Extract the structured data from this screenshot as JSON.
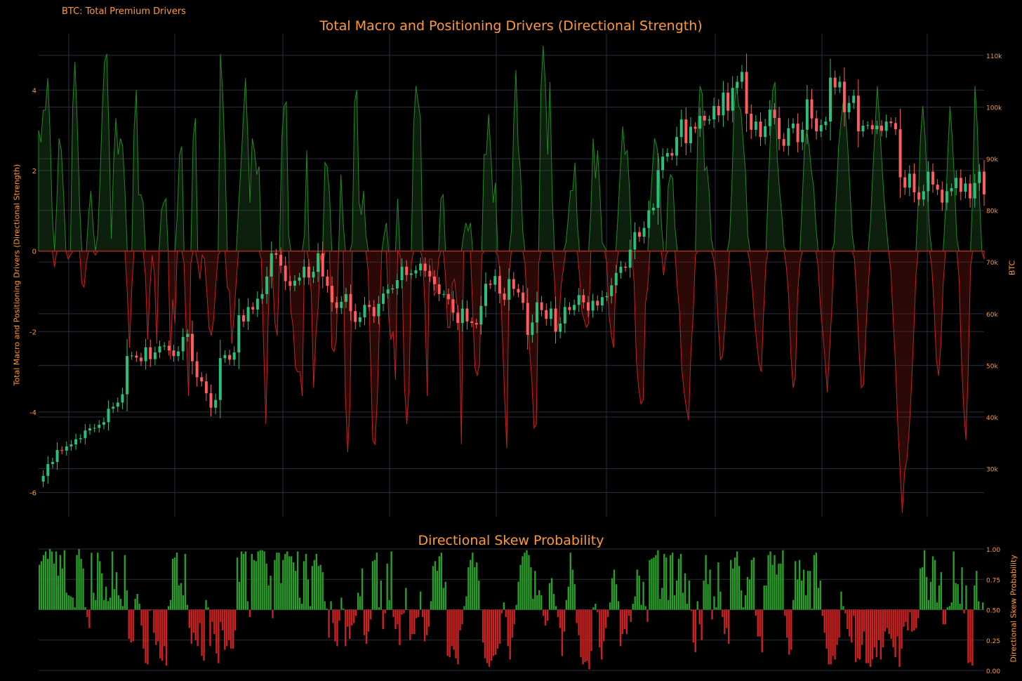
{
  "header_label": "BTC: Total Premium Drivers",
  "colors": {
    "background": "#000000",
    "text": "#ff9933",
    "grid": "#2a2d3e",
    "green": "#2a9d2a",
    "red": "#cc2222",
    "candle_up": "#2bbf7a",
    "candle_down": "#ff5c5c"
  },
  "chart_data": [
    {
      "type": "area",
      "title": "Total Macro and Positioning Drivers (Directional Strength)",
      "ylabel": "Total Macro and Positioning Drivers (Directional Strength)",
      "y2label": "BTC",
      "y_ticks": [
        4,
        2,
        0,
        -2,
        -4,
        -6
      ],
      "ylim": [
        -6.6,
        5.4
      ],
      "y2_ticks": [
        "110k",
        "100k",
        "90k",
        "80k",
        "70k",
        "60k",
        "50k",
        "40k",
        "30k"
      ],
      "y2_tick_values": [
        110000,
        100000,
        90000,
        80000,
        70000,
        60000,
        50000,
        40000,
        30000
      ],
      "y2lim": [
        20700,
        114200
      ],
      "grid": true,
      "series": [
        {
          "kind": "driver_strength",
          "values": [
            3.0,
            2.7,
            3.5,
            3.5,
            4.3,
            3.0,
            0.9,
            -0.4,
            1.2,
            2.8,
            2.5,
            1.4,
            0.0,
            -0.2,
            -0.1,
            3.6,
            4.7,
            3.2,
            1.2,
            -0.8,
            -0.9,
            -0.3,
            0.9,
            1.5,
            0.6,
            -0.1,
            0.4,
            1.7,
            3.5,
            4.7,
            4.9,
            2.8,
            0.3,
            2.2,
            3.3,
            2.4,
            2.8,
            2.6,
            1.5,
            -1.0,
            -2.4,
            -0.9,
            3.0,
            4.0,
            1.4,
            1.4,
            1.2,
            -0.6,
            -2.2,
            -0.9,
            -0.1,
            -0.6,
            -2.3,
            0.0,
            1.0,
            1.2,
            1.3,
            0.0,
            -2.7,
            -1.2,
            -1.8,
            0.9,
            2.4,
            2.6,
            -0.3,
            -2.1,
            -3.6,
            -0.3,
            2.8,
            3.3,
            -0.3,
            -0.7,
            -0.1,
            -0.2,
            -1.0,
            -1.9,
            -2.1,
            -1.7,
            -0.8,
            -0.1,
            4.9,
            3.9,
            2.4,
            -0.9,
            -1.0,
            -2.3,
            -1.6,
            -0.7,
            1.1,
            2.1,
            3.2,
            4.3,
            2.9,
            1.2,
            2.8,
            2.5,
            1.9,
            2.1,
            -0.2,
            -2.4,
            -4.3,
            -1.7,
            -0.1,
            -0.7,
            -1.8,
            -2.1,
            -0.3,
            2.8,
            3.6,
            3.7,
            0.4,
            -1.5,
            -1.9,
            -2.9,
            -3.0,
            -3.0,
            -3.6,
            0.4,
            2.5,
            -0.3,
            -1.1,
            -3.4,
            -2.1,
            -1.4,
            -0.1,
            -0.4,
            2.2,
            2.1,
            1.4,
            -2.4,
            -2.5,
            -2.2,
            0.0,
            1.9,
            0.7,
            -3.6,
            -5.0,
            -3.8,
            0.2,
            3.7,
            4.0,
            1.2,
            0.9,
            1.5,
            0.4,
            -0.5,
            -2.5,
            -4.7,
            -4.8,
            -3.7,
            -1.7,
            0.0,
            0.4,
            0.7,
            -1.6,
            -2.2,
            -2.0,
            -3.2,
            1.3,
            -0.1,
            -0.8,
            -3.4,
            -4.3,
            -3.4,
            -0.3,
            3.1,
            4.1,
            3.7,
            3.3,
            -0.2,
            -1.4,
            -3.6,
            -0.2,
            -0.2,
            -1.1,
            -1.0,
            -0.2,
            1.3,
            1.4,
            -0.6,
            -1.9,
            -1.9,
            -0.8,
            -0.7,
            -1.3,
            -1.6,
            -4.8,
            0.4,
            0.7,
            0.5,
            0.7,
            -1.5,
            -2.9,
            -3.1,
            -2.8,
            -0.1,
            2.4,
            2.4,
            3.4,
            2.4,
            1.2,
            1.7,
            -0.1,
            -0.5,
            -2.0,
            -3.6,
            -4.9,
            -0.6,
            0.5,
            3.1,
            4.5,
            2.6,
            2.0,
            0.5,
            -0.3,
            -1.5,
            -2.4,
            -3.2,
            -4.4,
            -4.3,
            -0.3,
            4.0,
            5.1,
            4.1,
            2.4,
            4.2,
            1.3,
            -0.7,
            -2.0,
            -1.7,
            -0.8,
            -0.4,
            0.2,
            0.8,
            1.5,
            1.5,
            2.2,
            0.7,
            -0.6,
            -1.5,
            -1.7,
            -1.9,
            -1.8,
            1.0,
            2.8,
            1.8,
            2.5,
            1.4,
            0.2,
            0.1,
            -0.3,
            -1.6,
            -2.1,
            -2.4,
            -0.6,
            1.0,
            2.1,
            3.1,
            2.4,
            2.5,
            1.5,
            0.0,
            -0.8,
            -2.7,
            -3.4,
            -3.8,
            -3.7,
            -1.3,
            -0.9,
            1.0,
            2.0,
            2.8,
            2.6,
            2.2,
            0.7,
            -0.6,
            -0.1,
            1.6,
            1.9,
            1.8,
            0.6,
            -0.9,
            -1.5,
            -2.9,
            -3.5,
            -3.9,
            -4.2,
            -2.5,
            -1.6,
            -0.1,
            3.0,
            4.1,
            3.9,
            2.0,
            2.1,
            1.5,
            0.3,
            -0.2,
            -0.6,
            -1.8,
            -2.7,
            -2.6,
            -1.8,
            -1.0,
            0.3,
            1.6,
            3.5,
            4.2,
            3.6,
            3.5,
            2.7,
            2.0,
            0.4,
            -0.3,
            -0.9,
            -1.7,
            -2.3,
            -2.8,
            -3.0,
            -1.5,
            -0.3,
            1.5,
            2.9,
            4.0,
            4.2,
            2.3,
            1.5,
            0.9,
            0.1,
            -0.4,
            -1.1,
            -2.6,
            -3.4,
            -3.1,
            -1.0,
            -0.3,
            1.3,
            2.6,
            3.0,
            2.6,
            2.0,
            1.6,
            0.6,
            -0.4,
            -1.4,
            -2.0,
            -2.7,
            -3.5,
            -2.5,
            -1.4,
            0.2,
            1.4,
            2.6,
            3.2,
            3.7,
            3.4,
            2.6,
            1.5,
            0.4,
            -0.2,
            -1.2,
            -2.5,
            -3.4,
            -3.3,
            -2.0,
            -0.9,
            0.7,
            1.9,
            3.0,
            4.1,
            3.2,
            2.2,
            1.3,
            0.6,
            0.0,
            -0.5,
            -1.7,
            -2.8,
            -4.3,
            -5.4,
            -6.5,
            -5.5,
            -5.2,
            -4.5,
            -3.4,
            -2.1,
            -0.6,
            1.2,
            2.8,
            3.6,
            2.9,
            1.6,
            0.5,
            -0.4,
            -1.4,
            -2.7,
            -3.1,
            -2.3,
            -0.8,
            1.0,
            2.4,
            3.6,
            2.8,
            1.7,
            0.3,
            -0.7,
            -2.6,
            -3.9,
            -4.7,
            -3.0,
            -0.4,
            1.4,
            4.1,
            3.1,
            1.3,
            0.0,
            -0.2
          ]
        },
        {
          "kind": "btc_ohlc",
          "name": "BTC",
          "close": [
            27500,
            28600,
            30900,
            31300,
            33600,
            33500,
            34300,
            34700,
            35700,
            35900,
            37400,
            37800,
            37900,
            38500,
            39000,
            41600,
            42000,
            42800,
            44400,
            51800,
            51900,
            51500,
            50800,
            53500,
            51200,
            52500,
            53700,
            53800,
            52900,
            51800,
            52700,
            55500,
            56100,
            50800,
            47700,
            46900,
            44600,
            41800,
            43300,
            51400,
            52000,
            51100,
            52500,
            59700,
            58500,
            61300,
            60800,
            62900,
            63800,
            67200,
            71700,
            71400,
            69300,
            66300,
            65400,
            66400,
            67000,
            69100,
            67000,
            68100,
            71700,
            67200,
            65400,
            62200,
            61100,
            62300,
            63800,
            60500,
            58400,
            59300,
            61700,
            61300,
            59500,
            61900,
            63900,
            64700,
            64900,
            66500,
            69100,
            67500,
            67800,
            68400,
            69700,
            68300,
            67200,
            65700,
            63800,
            63800,
            62800,
            60200,
            58200,
            61000,
            58500,
            58200,
            57900,
            61500,
            65800,
            65600,
            67300,
            63900,
            62700,
            66700,
            64800,
            64100,
            62100,
            55900,
            58300,
            62200,
            60700,
            59000,
            61000,
            56500,
            58100,
            61300,
            60700,
            61700,
            63600,
            62200,
            60600,
            62500,
            61600,
            63200,
            63400,
            65500,
            67900,
            69100,
            68900,
            72400,
            75800,
            74900,
            76600,
            80000,
            80500,
            87800,
            90400,
            91100,
            90600,
            94200,
            97600,
            93000,
            96200,
            95800,
            98300,
            97400,
            97600,
            100200,
            98400,
            102800,
            99300,
            103700,
            104900,
            106800,
            98700,
            95600,
            97200,
            94200,
            96300,
            99500,
            97900,
            93800,
            92500,
            95900,
            96800,
            93200,
            95600,
            101500,
            97800,
            95300,
            96500,
            97200,
            105700,
            103800,
            104900,
            99000,
            100800,
            102200,
            95300,
            96400,
            96500,
            95700,
            96400,
            95400,
            97200,
            96900,
            95700,
            86400,
            84400,
            87100,
            83500,
            82100,
            83700,
            87500,
            85000,
            84000,
            81500,
            83700,
            84300,
            86300,
            83600,
            85200,
            82300,
            85300,
            87500,
            83100
          ]
        }
      ]
    },
    {
      "type": "bar",
      "title": "Directional Skew Probability",
      "ylabel": "Directional Skew Probability",
      "y_ticks": [
        "1.00",
        "0.75",
        "0.50",
        "0.25",
        "0.00"
      ],
      "y_tick_values": [
        1.0,
        0.75,
        0.5,
        0.25,
        0.0
      ],
      "ylim": [
        0,
        1.0
      ],
      "baseline": 0.5,
      "grid": true,
      "values": [
        0.87,
        0.9,
        0.95,
        0.98,
        0.92,
        1.0,
        0.98,
        0.88,
        0.98,
        0.78,
        0.95,
        0.84,
        0.99,
        0.64,
        0.62,
        0.61,
        0.6,
        0.52,
        0.95,
        1.0,
        0.92,
        0.84,
        0.52,
        0.44,
        0.35,
        0.97,
        0.64,
        0.58,
        0.97,
        0.9,
        0.8,
        0.58,
        0.69,
        0.57,
        0.6,
        0.98,
        0.67,
        0.81,
        0.62,
        0.59,
        0.53,
        0.95,
        0.66,
        0.26,
        0.23,
        0.24,
        0.59,
        0.63,
        0.55,
        0.37,
        0.18,
        0.06,
        0.05,
        0.49,
        0.5,
        0.31,
        0.21,
        0.24,
        0.1,
        0.08,
        0.2,
        0.04,
        0.53,
        0.58,
        0.92,
        0.93,
        0.97,
        0.7,
        0.72,
        0.62,
        0.96,
        0.54,
        0.35,
        0.22,
        0.31,
        0.25,
        0.2,
        0.39,
        0.12,
        0.08,
        0.58,
        0.52,
        0.2,
        0.4,
        0.3,
        0.14,
        0.06,
        0.4,
        0.33,
        0.17,
        0.2,
        0.25,
        0.18,
        0.18,
        0.33,
        0.93,
        0.73,
        0.98,
        0.96,
        0.98,
        0.57,
        0.44,
        0.96,
        0.91,
        0.9,
        0.98,
        0.99,
        0.99,
        0.98,
        0.88,
        0.7,
        0.78,
        0.43,
        0.91,
        0.97,
        0.97,
        0.72,
        0.91,
        0.96,
        0.98,
        0.94,
        0.94,
        0.89,
        0.82,
        0.98,
        0.6,
        0.55,
        0.9,
        0.96,
        0.75,
        0.53,
        0.86,
        0.91,
        0.96,
        0.86,
        0.87,
        0.81,
        0.57,
        0.51,
        0.27,
        0.57,
        0.39,
        0.24,
        0.2,
        0.41,
        0.6,
        0.51,
        0.2,
        0.36,
        0.26,
        0.37,
        0.39,
        0.45,
        0.64,
        0.61,
        0.84,
        0.29,
        0.22,
        0.32,
        0.42,
        0.9,
        0.91,
        0.97,
        0.52,
        0.74,
        0.34,
        0.47,
        0.88,
        0.58,
        0.98,
        0.44,
        0.34,
        0.38,
        0.21,
        0.46,
        0.47,
        0.68,
        0.5,
        0.25,
        0.3,
        0.3,
        0.43,
        0.44,
        0.65,
        0.44,
        0.24,
        0.29,
        0.36,
        0.57,
        0.86,
        0.9,
        0.82,
        0.94,
        0.97,
        0.68,
        0.73,
        0.12,
        0.11,
        0.2,
        0.17,
        0.1,
        0.05,
        0.33,
        0.38,
        0.53,
        0.61,
        0.85,
        0.91,
        0.97,
        0.85,
        0.89,
        0.74,
        0.5,
        0.23,
        0.1,
        0.06,
        0.03,
        0.08,
        0.12,
        0.13,
        0.18,
        0.22,
        0.47,
        0.56,
        0.44,
        0.2,
        0.09,
        0.27,
        0.38,
        0.54,
        0.73,
        0.87,
        0.94,
        0.97,
        0.99,
        0.95,
        0.85,
        0.59,
        0.82,
        0.62,
        0.66,
        0.62,
        0.45,
        0.37,
        0.41,
        0.72,
        0.76,
        0.63,
        0.53,
        0.44,
        0.35,
        0.12,
        0.32,
        0.58,
        0.69,
        0.97,
        0.83,
        0.71,
        0.39,
        0.29,
        0.11,
        0.05,
        0.07,
        0.08,
        0.01,
        0.16,
        0.52,
        0.55,
        0.48,
        0.19,
        0.09,
        0.24,
        0.35,
        0.44,
        0.56,
        0.76,
        0.83,
        0.71,
        0.57,
        0.2,
        0.3,
        0.34,
        0.3,
        0.45,
        0.4,
        0.55,
        0.61,
        0.83,
        0.78,
        0.54,
        0.73,
        0.53,
        0.4,
        0.91,
        0.92,
        0.93,
        0.95,
        0.99,
        0.59,
        0.68,
        0.96,
        0.93,
        0.58,
        0.95,
        0.97,
        0.62,
        0.74,
        0.92,
        0.96,
        0.64,
        0.8,
        0.55,
        0.74,
        0.49,
        0.23,
        0.15,
        0.57,
        0.38,
        0.25,
        0.74,
        0.95,
        0.71,
        0.83,
        0.42,
        0.61,
        0.52,
        0.89,
        0.65,
        0.44,
        0.3,
        0.35,
        0.22,
        0.91,
        0.84,
        0.93,
        0.98,
        0.86,
        0.66,
        0.52,
        0.62,
        0.77,
        0.75,
        0.91,
        0.93,
        0.45,
        0.28,
        0.28,
        0.15,
        0.7,
        0.7,
        0.95,
        0.98,
        0.87,
        0.95,
        0.79,
        0.88,
        0.88,
        0.99,
        0.45,
        0.27,
        0.13,
        0.17,
        0.58,
        0.9,
        0.75,
        0.91,
        0.74,
        0.83,
        0.62,
        0.82,
        0.82,
        0.51,
        0.95,
        0.97,
        0.68,
        0.74,
        0.45,
        0.31,
        0.18,
        0.05,
        0.05,
        0.12,
        0.09,
        0.21,
        0.27,
        0.65,
        0.53,
        0.47,
        0.34,
        0.28,
        0.23,
        0.45,
        0.07,
        0.1,
        0.09,
        0.21,
        0.32,
        0.06,
        0.06,
        0.03,
        0.09,
        0.19,
        0.11,
        0.25,
        0.09,
        0.19,
        0.32,
        0.35,
        0.3,
        0.26,
        0.19,
        0.11,
        0.28,
        0.03,
        0.18,
        0.36,
        0.4,
        0.33,
        0.48,
        0.32,
        0.33,
        0.35,
        0.43,
        0.84,
        0.85,
        0.99,
        0.77,
        0.58,
        0.73,
        0.94,
        0.91,
        0.56,
        0.7,
        0.81,
        0.38,
        0.38,
        0.52,
        0.53,
        0.56,
        0.98,
        0.72,
        0.71,
        0.55,
        0.85,
        0.47,
        0.7,
        0.06,
        0.07,
        0.04,
        0.7,
        0.82,
        0.57,
        0.5,
        0.56
      ]
    }
  ]
}
